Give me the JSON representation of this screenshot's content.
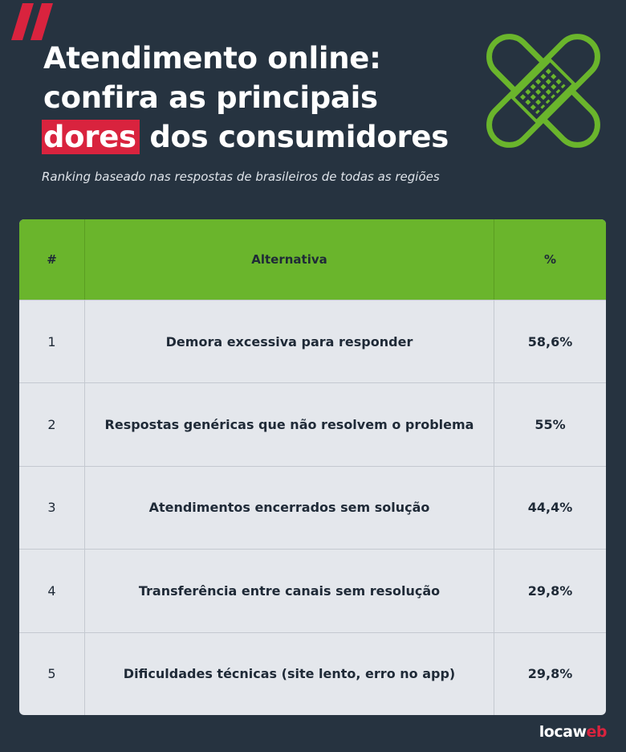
{
  "title": {
    "line1": "Atendimento online:",
    "line2": "confira as principais",
    "highlight": "dores",
    "line3_rest": " dos consumidores"
  },
  "subtitle": "Ranking baseado nas respostas de brasileiros de todas as regiões",
  "table": {
    "headers": {
      "num": "#",
      "alt": "Alternativa",
      "pct": "%"
    },
    "rows": [
      {
        "num": "1",
        "alt": "Demora excessiva para responder",
        "pct": "58,6%"
      },
      {
        "num": "2",
        "alt": "Respostas genéricas que não resolvem o problema",
        "pct": "55%"
      },
      {
        "num": "3",
        "alt": "Atendimentos encerrados sem solução",
        "pct": "44,4%"
      },
      {
        "num": "4",
        "alt": "Transferência entre canais sem resolução",
        "pct": "29,8%"
      },
      {
        "num": "5",
        "alt": "Dificuldades técnicas (site lento, erro no app)",
        "pct": "29,8%"
      }
    ]
  },
  "brand": {
    "part1": "locaw",
    "part2": "eb"
  },
  "icons": {
    "quote": "double-slash-quote-icon",
    "bandage": "crossed-bandage-icon"
  },
  "colors": {
    "background": "#263340",
    "accent_red": "#d9233e",
    "accent_green": "#6ab52c",
    "table_bg": "#e4e7ec"
  }
}
